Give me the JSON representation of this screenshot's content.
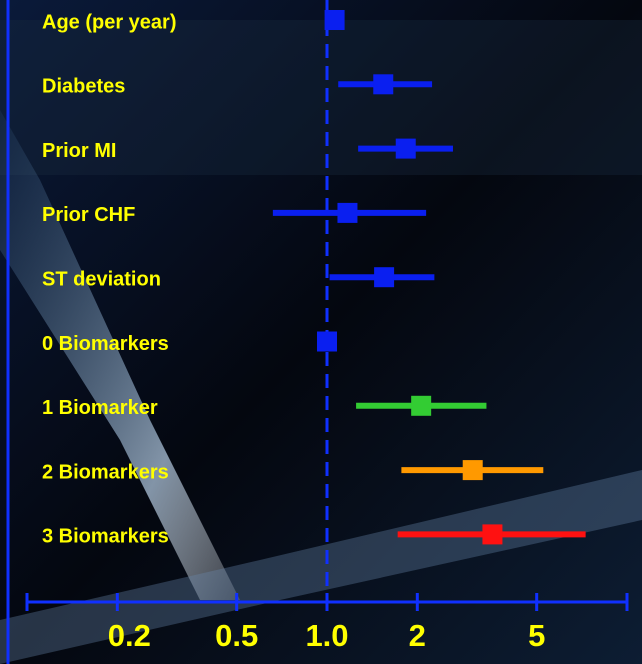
{
  "chart_data": {
    "type": "forest",
    "categories": [
      "Age (per year)",
      "Diabetes",
      "Prior MI",
      "Prior CHF",
      "ST deviation",
      "0 Biomarkers",
      "1 Biomarker",
      "2 Biomarkers",
      "3 Biomarkers"
    ],
    "values": [
      1.06,
      1.54,
      1.83,
      1.17,
      1.55,
      1.0,
      2.06,
      3.06,
      3.56
    ],
    "lower": [
      null,
      1.09,
      1.27,
      0.66,
      1.02,
      null,
      1.25,
      1.77,
      1.72
    ],
    "upper": [
      null,
      2.24,
      2.63,
      2.14,
      2.28,
      null,
      3.4,
      5.26,
      7.28
    ],
    "colors": [
      "#0a1ff0",
      "#0a1ff0",
      "#0a1ff0",
      "#0a1ff0",
      "#0a1ff0",
      "#0a1ff0",
      "#33cc33",
      "#ff9900",
      "#ff1111"
    ],
    "log_x": true,
    "xlim": [
      0.1,
      10
    ],
    "xticks": [
      0.2,
      0.5,
      {
        "value": 1,
        "label": "1.0"
      },
      2,
      5
    ],
    "reference": 1
  }
}
